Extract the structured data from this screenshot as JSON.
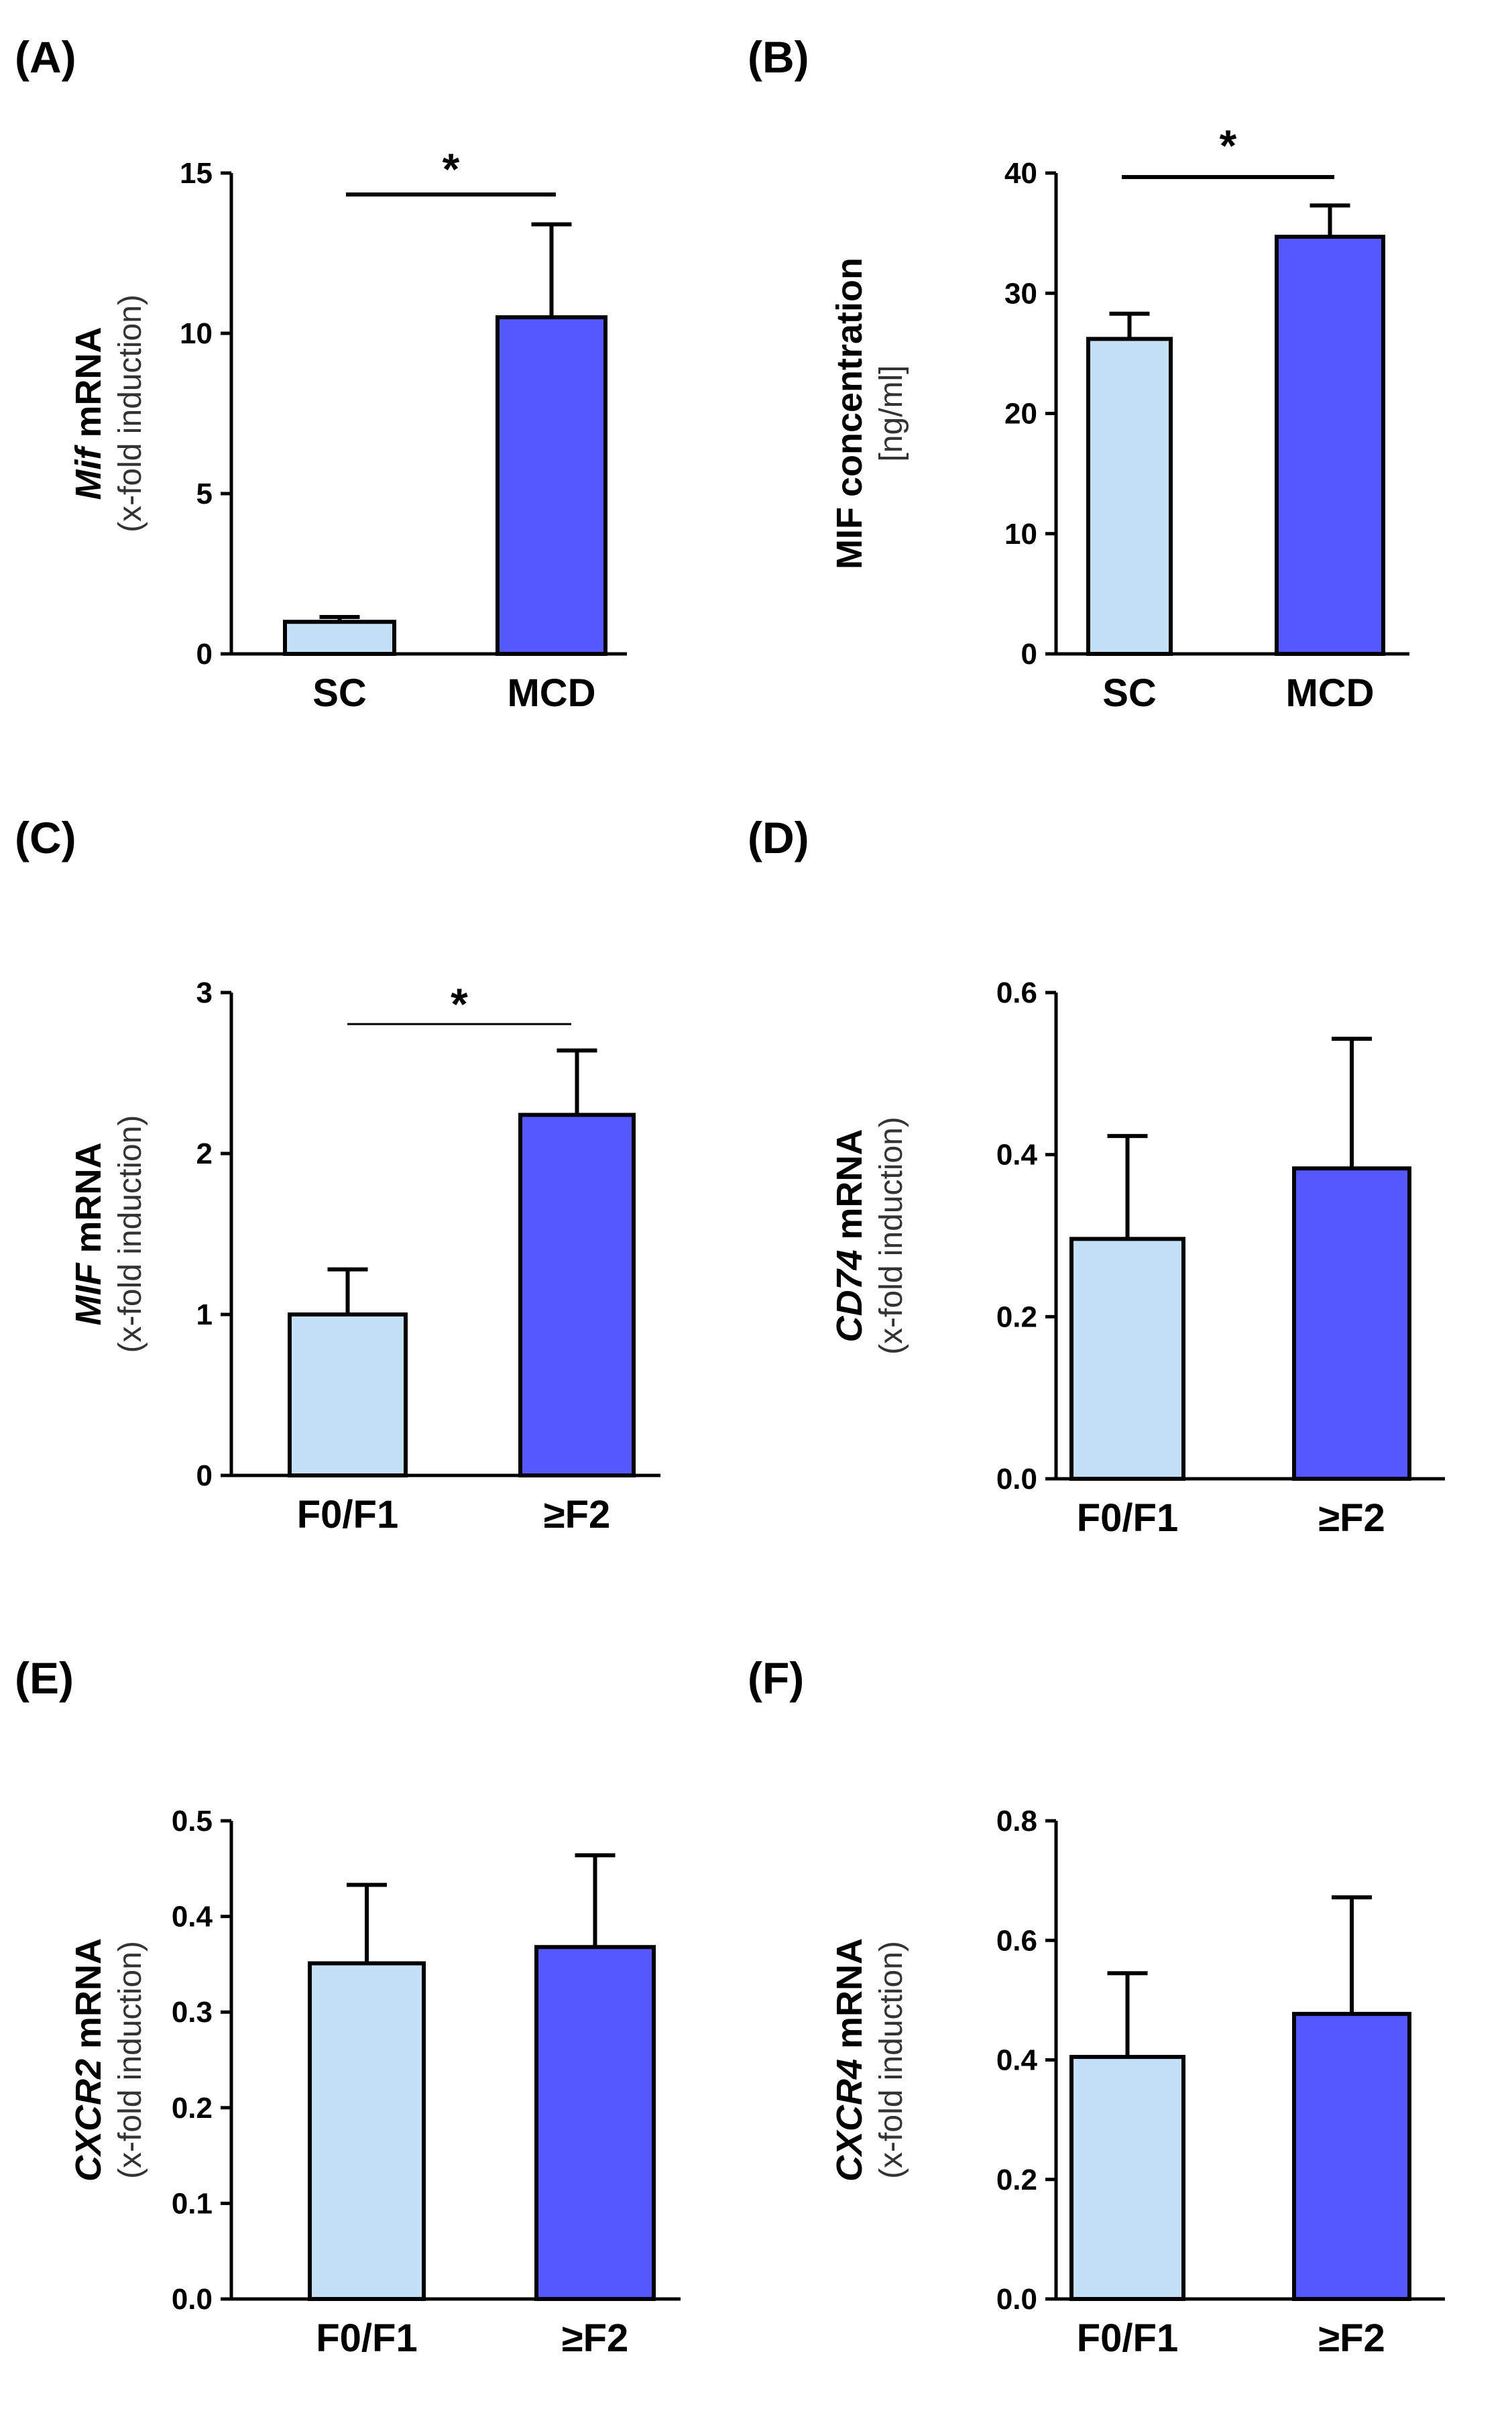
{
  "colors": {
    "light_bar": "#c3e0f6",
    "dark_bar": "#5557ff",
    "stroke": "#000000"
  },
  "chart_data": [
    {
      "panel": "(A)",
      "type": "bar",
      "categories": [
        "SC",
        "MCD"
      ],
      "values": [
        1.0,
        10.5
      ],
      "errors": [
        0.15,
        2.9
      ],
      "ylim": [
        0,
        15
      ],
      "yticks": [
        "0",
        "5",
        "10",
        "15"
      ],
      "ylabel_italic": "Mif",
      "ylabel_rest": " mRNA",
      "ylabel_sub": "(x-fold induction)",
      "significance": "*"
    },
    {
      "panel": "(B)",
      "type": "bar",
      "categories": [
        "SC",
        "MCD"
      ],
      "values": [
        26.2,
        34.7
      ],
      "errors": [
        2.1,
        2.6
      ],
      "ylim": [
        0,
        40
      ],
      "yticks": [
        "0",
        "10",
        "20",
        "30",
        "40"
      ],
      "ylabel_italic": "",
      "ylabel_rest": "MIF concentration",
      "ylabel_sub": "[ng/ml]",
      "significance": "*"
    },
    {
      "panel": "(C)",
      "type": "bar",
      "categories": [
        "F0/F1",
        "≥F2"
      ],
      "values": [
        1.0,
        2.24
      ],
      "errors": [
        0.28,
        0.4
      ],
      "ylim": [
        0,
        3
      ],
      "yticks": [
        "0",
        "1",
        "2",
        "3"
      ],
      "ylabel_italic": "MIF",
      "ylabel_rest": " mRNA",
      "ylabel_sub": "(x-fold induction)",
      "significance": "*"
    },
    {
      "panel": "(D)",
      "type": "bar",
      "categories": [
        "F0/F1",
        "≥F2"
      ],
      "values": [
        0.296,
        0.383
      ],
      "errors": [
        0.127,
        0.16
      ],
      "ylim": [
        0,
        0.6
      ],
      "yticks": [
        "0.0",
        "0.2",
        "0.4",
        "0.6"
      ],
      "ylabel_italic": "CD74",
      "ylabel_rest": " mRNA",
      "ylabel_sub": "(x-fold induction)",
      "significance": ""
    },
    {
      "panel": "(E)",
      "type": "bar",
      "categories": [
        "F0/F1",
        "≥F2"
      ],
      "values": [
        0.351,
        0.368
      ],
      "errors": [
        0.082,
        0.096
      ],
      "ylim": [
        0,
        0.5
      ],
      "yticks": [
        "0.0",
        "0.1",
        "0.2",
        "0.3",
        "0.4",
        "0.5"
      ],
      "ylabel_italic": "CXCR2",
      "ylabel_rest": " mRNA",
      "ylabel_sub": "(x-fold induction)",
      "significance": ""
    },
    {
      "panel": "(F)",
      "type": "bar",
      "categories": [
        "F0/F1",
        "≥F2"
      ],
      "values": [
        0.405,
        0.477
      ],
      "errors": [
        0.14,
        0.195
      ],
      "ylim": [
        0,
        0.8
      ],
      "yticks": [
        "0.0",
        "0.2",
        "0.4",
        "0.6",
        "0.8"
      ],
      "ylabel_italic": "CXCR4",
      "ylabel_rest": " mRNA",
      "ylabel_sub": "(x-fold induction)",
      "significance": ""
    }
  ]
}
